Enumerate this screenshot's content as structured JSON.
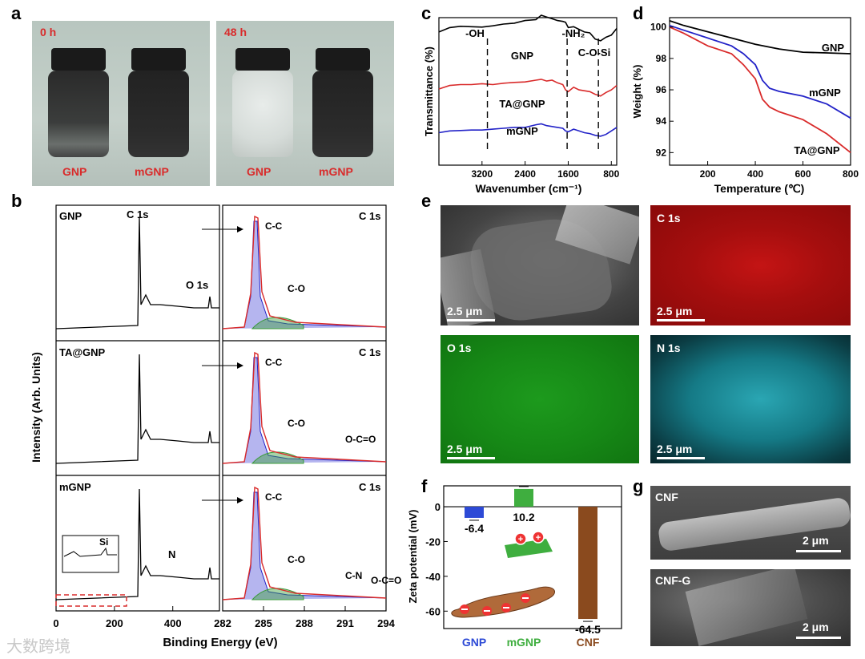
{
  "panels": {
    "a": "a",
    "b": "b",
    "c": "c",
    "d": "d",
    "e": "e",
    "f": "f",
    "g": "g"
  },
  "panel_a": {
    "time_0": "0 h",
    "time_48": "48 h",
    "label_gnp": "GNP",
    "label_mgnp": "mGNP"
  },
  "panel_e": {
    "tiles": [
      "",
      "C 1s",
      "O 1s",
      "N 1s"
    ],
    "scale": "2.5 μm"
  },
  "panel_g": {
    "tiles": [
      "CNF",
      "CNF-G"
    ],
    "scale": "2 μm"
  },
  "colors": {
    "red": "#d92b2b",
    "blue": "#2323c8",
    "green": "#3a9a3a",
    "brown": "#8a4a1e"
  },
  "chart_data": [
    {
      "id": "c",
      "type": "line",
      "xlabel": "Wavenumber (cm⁻¹)",
      "ylabel": "Transmittance (%)",
      "x_ticks": [
        "3200",
        "2400",
        "1600",
        "800"
      ],
      "xlim_reversed": [
        4000,
        700
      ],
      "markers": [
        "-OH",
        "-NH₂",
        "C-O-Si"
      ],
      "series": [
        {
          "name": "GNP",
          "color": "#000000",
          "x": [
            4000,
            3800,
            3600,
            3400,
            3200,
            3000,
            2800,
            2600,
            2400,
            2200,
            2100,
            2000,
            1900,
            1800,
            1700,
            1650,
            1600,
            1500,
            1400,
            1300,
            1200,
            1100,
            1000,
            900,
            800,
            700
          ],
          "y": [
            62,
            72,
            75,
            74,
            73,
            76,
            80,
            82,
            88,
            90,
            100,
            96,
            92,
            88,
            86,
            84,
            72,
            74,
            68,
            62,
            60,
            46,
            42,
            50,
            55,
            70
          ]
        },
        {
          "name": "TA@GNP",
          "color": "#d92b2b",
          "x": [
            4000,
            3800,
            3600,
            3400,
            3200,
            3000,
            2800,
            2600,
            2400,
            2200,
            2100,
            2000,
            1900,
            1800,
            1700,
            1650,
            1600,
            1500,
            1400,
            1300,
            1200,
            1100,
            1000,
            900,
            800,
            700
          ],
          "y": [
            20,
            28,
            30,
            30,
            32,
            30,
            33,
            35,
            36,
            40,
            42,
            38,
            40,
            34,
            30,
            18,
            14,
            24,
            18,
            16,
            14,
            8,
            4,
            12,
            18,
            28
          ]
        },
        {
          "name": "mGNP",
          "color": "#2323c8",
          "x": [
            4000,
            3800,
            3600,
            3400,
            3200,
            3000,
            2800,
            2600,
            2400,
            2200,
            2100,
            2000,
            1900,
            1800,
            1700,
            1650,
            1600,
            1500,
            1400,
            1300,
            1200,
            1100,
            1000,
            900,
            800,
            700
          ],
          "y": [
            -10,
            -6,
            -5,
            -4,
            -4,
            -2,
            0,
            2,
            2,
            8,
            10,
            6,
            4,
            2,
            0,
            -6,
            -8,
            -2,
            -6,
            -10,
            -12,
            -16,
            -18,
            -14,
            -6,
            2
          ]
        }
      ]
    },
    {
      "id": "d",
      "type": "line",
      "xlabel": "Temperature (℃)",
      "ylabel": "Weight (%)",
      "x_ticks": [
        "200",
        "400",
        "600",
        "800"
      ],
      "y_ticks": [
        "92",
        "94",
        "96",
        "98",
        "100"
      ],
      "xlim": [
        40,
        800
      ],
      "ylim": [
        91.2,
        100.6
      ],
      "series": [
        {
          "name": "GNP",
          "color": "#000000",
          "x": [
            40,
            100,
            200,
            300,
            400,
            500,
            600,
            700,
            800
          ],
          "y": [
            100.4,
            100.1,
            99.7,
            99.3,
            98.9,
            98.6,
            98.4,
            98.35,
            98.3
          ]
        },
        {
          "name": "mGNP",
          "color": "#2323c8",
          "x": [
            40,
            100,
            200,
            300,
            350,
            400,
            430,
            460,
            500,
            600,
            700,
            800
          ],
          "y": [
            100.1,
            99.8,
            99.3,
            98.8,
            98.3,
            97.6,
            96.6,
            96.1,
            95.9,
            95.6,
            95.1,
            94.2
          ]
        },
        {
          "name": "TA@GNP",
          "color": "#d92b2b",
          "x": [
            40,
            100,
            200,
            300,
            350,
            400,
            430,
            460,
            500,
            600,
            700,
            800
          ],
          "y": [
            100.0,
            99.6,
            98.8,
            98.3,
            97.6,
            96.7,
            95.4,
            94.9,
            94.6,
            94.1,
            93.2,
            92.0
          ]
        }
      ]
    },
    {
      "id": "b",
      "type": "line",
      "xlabel": "Binding Energy (eV)",
      "ylabel": "Intensity (Arb. Units)",
      "survey_x_ticks": [
        "0",
        "200",
        "400"
      ],
      "hr_x_ticks": [
        "282",
        "285",
        "288",
        "291",
        "294"
      ],
      "rows": [
        {
          "name": "GNP",
          "survey_labels": [
            "C 1s",
            "O 1s"
          ],
          "hr_title": "C 1s",
          "hr_peaks": [
            "C-C",
            "C-O"
          ]
        },
        {
          "name": "TA@GNP",
          "survey_labels": [],
          "hr_title": "C 1s",
          "hr_peaks": [
            "C-C",
            "C-O",
            "O-C=O"
          ]
        },
        {
          "name": "mGNP",
          "survey_labels": [
            "N",
            "Si"
          ],
          "hr_title": "C 1s",
          "hr_peaks": [
            "C-C",
            "C-O",
            "C-N",
            "O-C=O"
          ]
        }
      ]
    },
    {
      "id": "f",
      "type": "bar",
      "ylabel": "Zeta potential (mV)",
      "categories": [
        "GNP",
        "mGNP",
        "CNF"
      ],
      "values": [
        -6.4,
        10.2,
        -64.5
      ],
      "value_labels": [
        "-6.4",
        "10.2",
        "-64.5"
      ],
      "y_ticks": [
        "0",
        "-20",
        "-40",
        "-60"
      ],
      "ylim": [
        -70,
        12
      ],
      "colors": [
        "#2d4ad6",
        "#3fae3f",
        "#8a4a1e"
      ]
    }
  ],
  "watermark": "大数跨境"
}
